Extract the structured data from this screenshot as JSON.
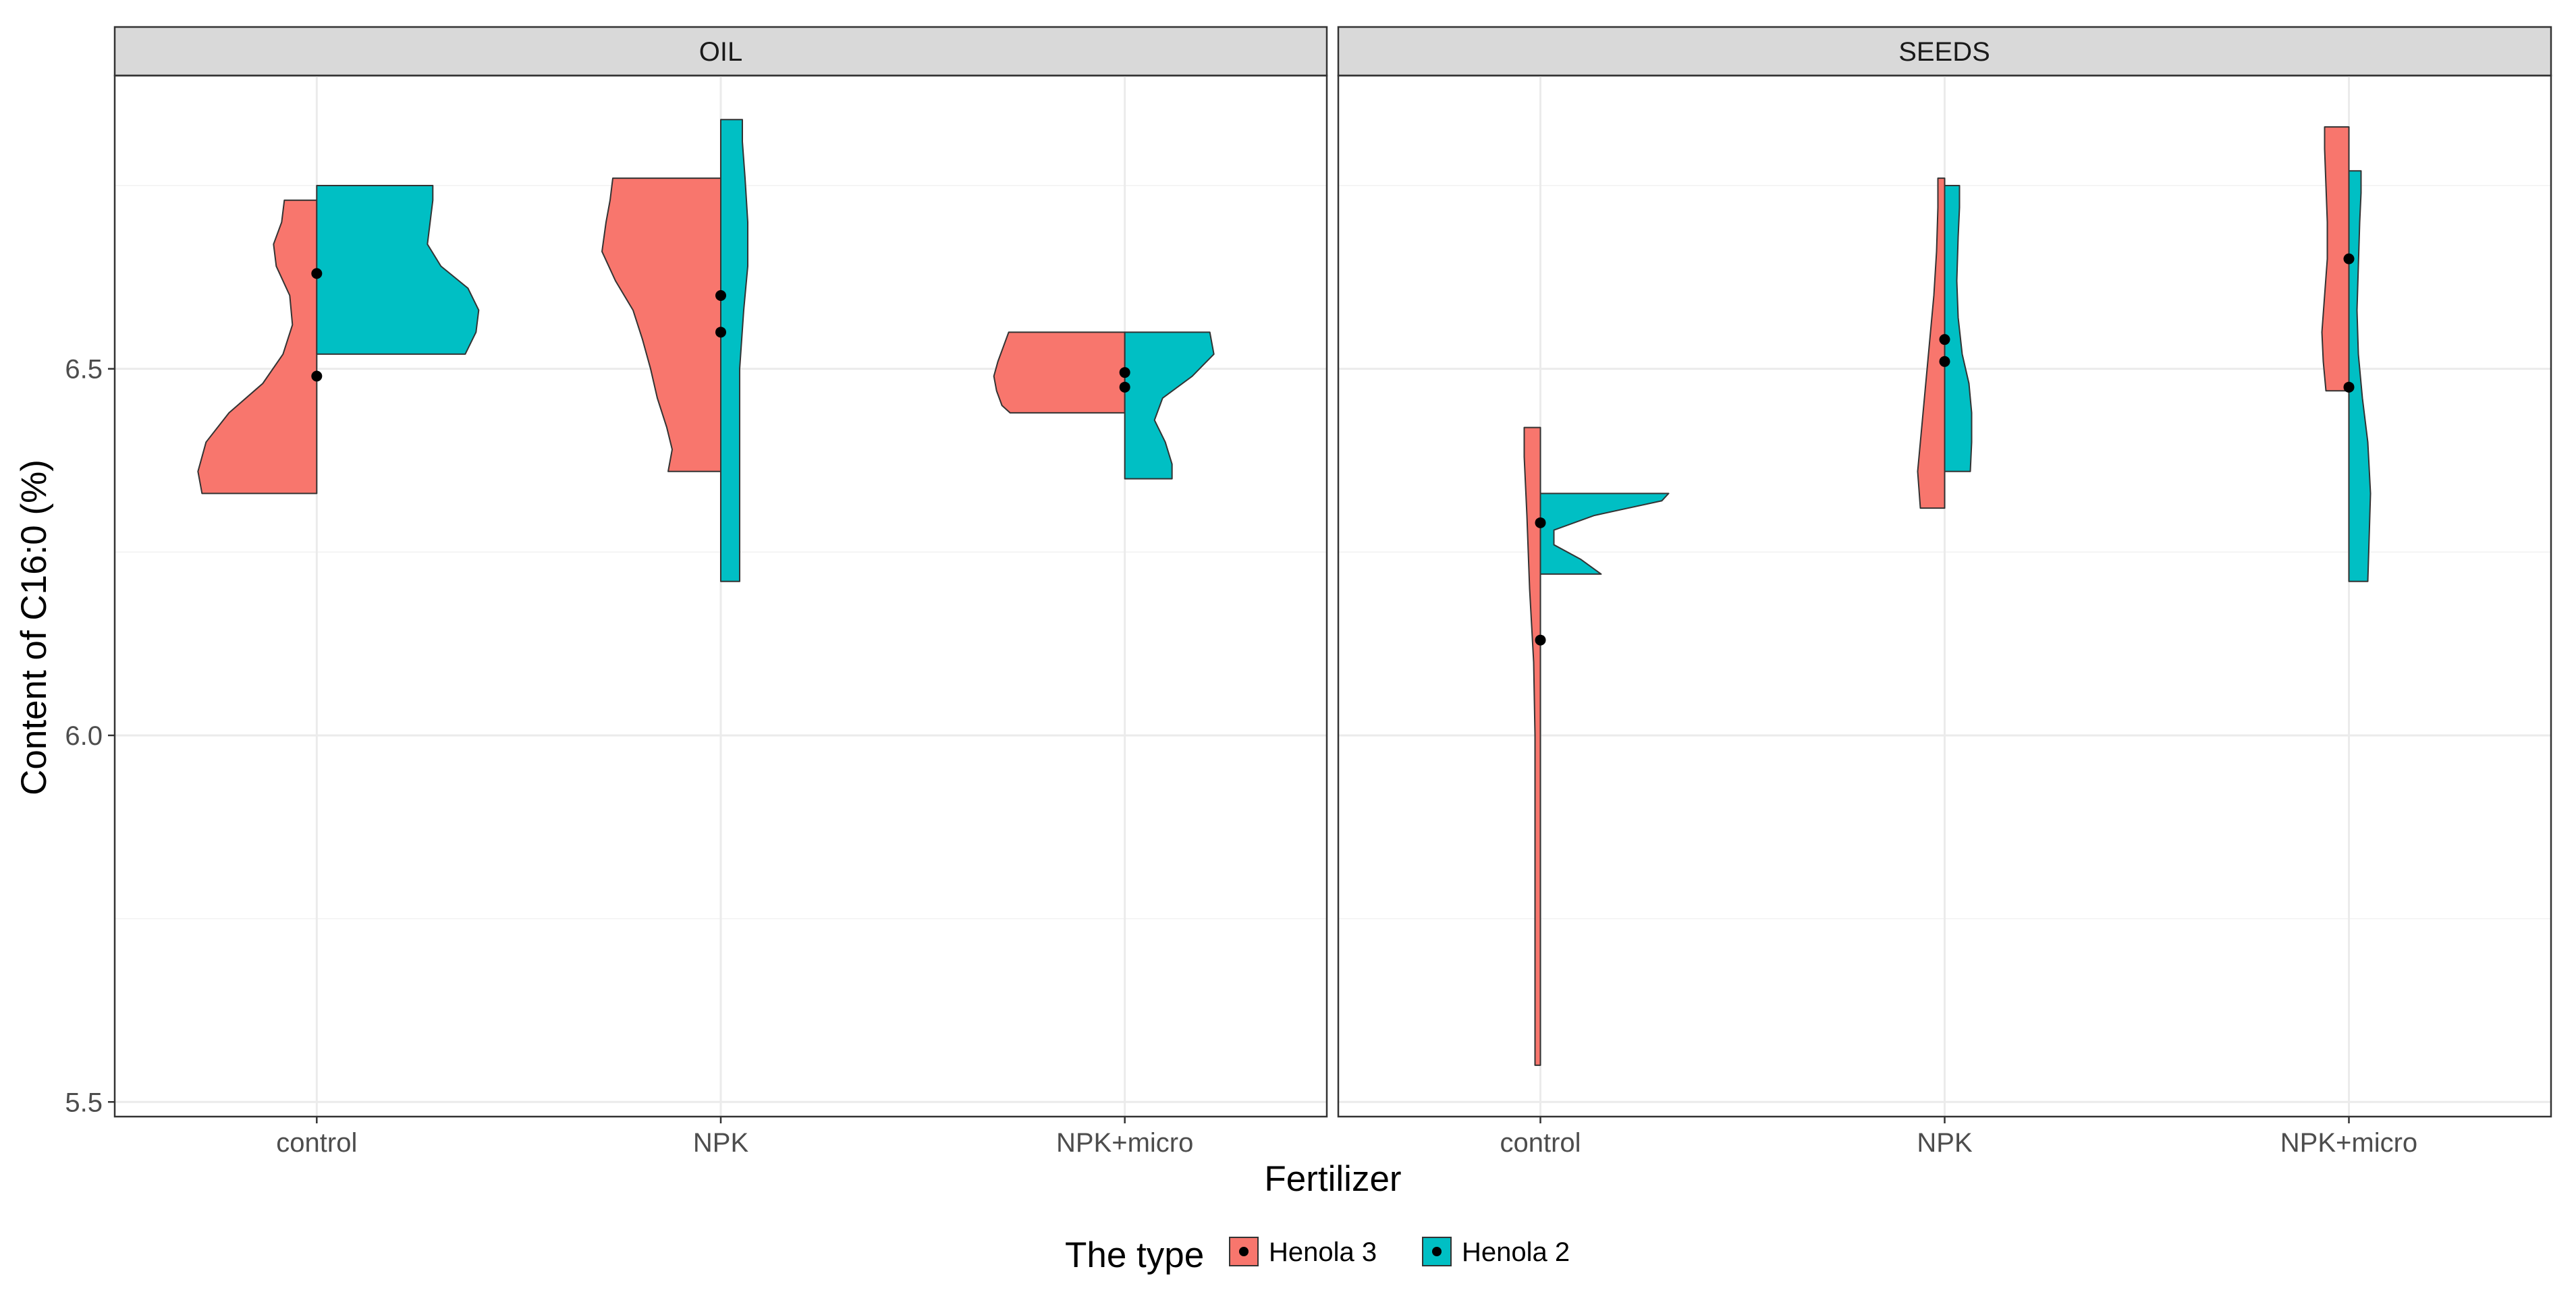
{
  "chart_data": {
    "type": "violin",
    "xlabel": "Fertilizer",
    "ylabel": "Content of C16:0 (%)",
    "categories": [
      "control",
      "NPK",
      "NPK+micro"
    ],
    "yticks": [
      5.5,
      6.0,
      6.5
    ],
    "ylim": [
      5.48,
      6.9
    ],
    "grid": true,
    "legend": {
      "title": "The type",
      "position": "bottom",
      "entries": [
        {
          "label": "Henola 3",
          "color": "#F8766D"
        },
        {
          "label": "Henola 2",
          "color": "#00BFC4"
        }
      ]
    },
    "panels": [
      {
        "title": "OIL",
        "groups": [
          {
            "category": "control",
            "type": "Henola 3",
            "side": "left",
            "min": 6.33,
            "max": 6.73,
            "points": [
              6.63,
              6.49
            ],
            "profile": [
              [
                6.33,
                0.85
              ],
              [
                6.36,
                0.88
              ],
              [
                6.4,
                0.82
              ],
              [
                6.44,
                0.65
              ],
              [
                6.48,
                0.4
              ],
              [
                6.52,
                0.25
              ],
              [
                6.56,
                0.18
              ],
              [
                6.6,
                0.2
              ],
              [
                6.64,
                0.3
              ],
              [
                6.67,
                0.32
              ],
              [
                6.7,
                0.26
              ],
              [
                6.73,
                0.24
              ]
            ]
          },
          {
            "category": "control",
            "type": "Henola 2",
            "side": "right",
            "min": 6.52,
            "max": 6.75,
            "points": [],
            "profile": [
              [
                6.52,
                1.1
              ],
              [
                6.55,
                1.18
              ],
              [
                6.58,
                1.2
              ],
              [
                6.61,
                1.12
              ],
              [
                6.64,
                0.92
              ],
              [
                6.67,
                0.82
              ],
              [
                6.7,
                0.84
              ],
              [
                6.73,
                0.86
              ],
              [
                6.75,
                0.86
              ]
            ]
          },
          {
            "category": "NPK",
            "type": "Henola 3",
            "side": "left",
            "min": 6.36,
            "max": 6.76,
            "points": [
              6.6,
              6.55
            ],
            "profile": [
              [
                6.36,
                0.39
              ],
              [
                6.39,
                0.36
              ],
              [
                6.42,
                0.4
              ],
              [
                6.46,
                0.47
              ],
              [
                6.5,
                0.52
              ],
              [
                6.54,
                0.58
              ],
              [
                6.58,
                0.65
              ],
              [
                6.62,
                0.78
              ],
              [
                6.66,
                0.88
              ],
              [
                6.7,
                0.85
              ],
              [
                6.73,
                0.82
              ],
              [
                6.76,
                0.8
              ]
            ]
          },
          {
            "category": "NPK",
            "type": "Henola 2",
            "side": "right",
            "min": 6.21,
            "max": 6.84,
            "points": [],
            "profile": [
              [
                6.21,
                0.14
              ],
              [
                6.3,
                0.14
              ],
              [
                6.4,
                0.14
              ],
              [
                6.5,
                0.14
              ],
              [
                6.58,
                0.17
              ],
              [
                6.64,
                0.2
              ],
              [
                6.7,
                0.2
              ],
              [
                6.76,
                0.18
              ],
              [
                6.81,
                0.16
              ],
              [
                6.84,
                0.16
              ]
            ]
          },
          {
            "category": "NPK+micro",
            "type": "Henola 3",
            "side": "left",
            "min": 6.44,
            "max": 6.55,
            "points": [
              6.495,
              6.475
            ],
            "profile": [
              [
                6.44,
                0.85
              ],
              [
                6.45,
                0.91
              ],
              [
                6.47,
                0.95
              ],
              [
                6.49,
                0.97
              ],
              [
                6.51,
                0.94
              ],
              [
                6.53,
                0.9
              ],
              [
                6.55,
                0.86
              ]
            ]
          },
          {
            "category": "NPK+micro",
            "type": "Henola 2",
            "side": "right",
            "min": 6.35,
            "max": 6.55,
            "points": [],
            "profile": [
              [
                6.35,
                0.35
              ],
              [
                6.37,
                0.35
              ],
              [
                6.4,
                0.3
              ],
              [
                6.43,
                0.22
              ],
              [
                6.46,
                0.28
              ],
              [
                6.49,
                0.5
              ],
              [
                6.52,
                0.66
              ],
              [
                6.55,
                0.63
              ]
            ]
          }
        ]
      },
      {
        "title": "SEEDS",
        "groups": [
          {
            "category": "control",
            "type": "Henola 3",
            "side": "left",
            "min": 5.55,
            "max": 6.42,
            "points": [
              6.29,
              6.13
            ],
            "profile": [
              [
                5.55,
                0.04
              ],
              [
                5.7,
                0.04
              ],
              [
                5.85,
                0.04
              ],
              [
                6.0,
                0.04
              ],
              [
                6.1,
                0.05
              ],
              [
                6.2,
                0.08
              ],
              [
                6.3,
                0.1
              ],
              [
                6.38,
                0.12
              ],
              [
                6.42,
                0.12
              ]
            ]
          },
          {
            "category": "control",
            "type": "Henola 2",
            "side": "right",
            "min": 6.22,
            "max": 6.33,
            "points": [],
            "profile": [
              [
                6.22,
                0.45
              ],
              [
                6.24,
                0.3
              ],
              [
                6.26,
                0.1
              ],
              [
                6.28,
                0.1
              ],
              [
                6.3,
                0.4
              ],
              [
                6.32,
                0.9
              ],
              [
                6.33,
                0.95
              ]
            ]
          },
          {
            "category": "NPK",
            "type": "Henola 3",
            "side": "left",
            "min": 6.31,
            "max": 6.76,
            "points": [
              6.54,
              6.51
            ],
            "profile": [
              [
                6.31,
                0.18
              ],
              [
                6.36,
                0.2
              ],
              [
                6.42,
                0.17
              ],
              [
                6.48,
                0.14
              ],
              [
                6.54,
                0.11
              ],
              [
                6.6,
                0.08
              ],
              [
                6.66,
                0.06
              ],
              [
                6.72,
                0.05
              ],
              [
                6.76,
                0.05
              ]
            ]
          },
          {
            "category": "NPK",
            "type": "Henola 2",
            "side": "right",
            "min": 6.36,
            "max": 6.75,
            "points": [],
            "profile": [
              [
                6.36,
                0.19
              ],
              [
                6.4,
                0.2
              ],
              [
                6.44,
                0.2
              ],
              [
                6.48,
                0.18
              ],
              [
                6.52,
                0.13
              ],
              [
                6.57,
                0.1
              ],
              [
                6.62,
                0.09
              ],
              [
                6.68,
                0.1
              ],
              [
                6.72,
                0.11
              ],
              [
                6.75,
                0.11
              ]
            ]
          },
          {
            "category": "NPK+micro",
            "type": "Henola 3",
            "side": "left",
            "min": 6.47,
            "max": 6.83,
            "points": [
              6.65,
              6.475
            ],
            "profile": [
              [
                6.47,
                0.17
              ],
              [
                6.51,
                0.19
              ],
              [
                6.55,
                0.2
              ],
              [
                6.6,
                0.18
              ],
              [
                6.65,
                0.16
              ],
              [
                6.7,
                0.16
              ],
              [
                6.75,
                0.17
              ],
              [
                6.8,
                0.18
              ],
              [
                6.83,
                0.18
              ]
            ]
          },
          {
            "category": "NPK+micro",
            "type": "Henola 2",
            "side": "right",
            "min": 6.21,
            "max": 6.77,
            "points": [],
            "profile": [
              [
                6.21,
                0.14
              ],
              [
                6.27,
                0.15
              ],
              [
                6.33,
                0.16
              ],
              [
                6.4,
                0.14
              ],
              [
                6.46,
                0.1
              ],
              [
                6.52,
                0.07
              ],
              [
                6.58,
                0.06
              ],
              [
                6.64,
                0.07
              ],
              [
                6.7,
                0.08
              ],
              [
                6.74,
                0.09
              ],
              [
                6.77,
                0.09
              ]
            ]
          }
        ]
      }
    ]
  }
}
